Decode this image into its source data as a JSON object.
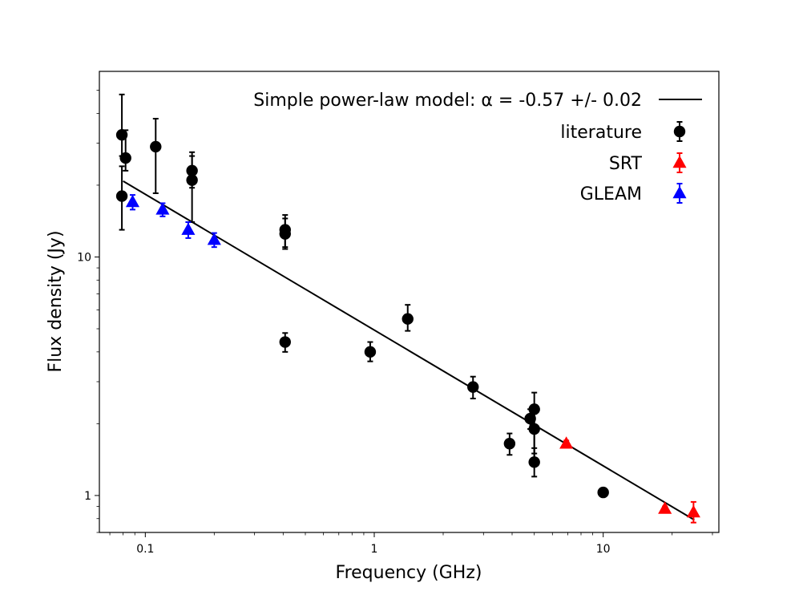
{
  "chart_data": {
    "type": "scatter",
    "xscale": "log",
    "yscale": "log",
    "xlabel": "Frequency (GHz)",
    "ylabel": "Flux density (Jy)",
    "xlim": [
      0.063,
      32
    ],
    "ylim": [
      0.7,
      60
    ],
    "xticks": [
      {
        "value": 0.1,
        "label": "0.1"
      },
      {
        "value": 1,
        "label": "1"
      },
      {
        "value": 10,
        "label": "10"
      }
    ],
    "yticks": [
      {
        "value": 1,
        "label": "1"
      },
      {
        "value": 10,
        "label": "10"
      }
    ],
    "legend": {
      "position": "top-right",
      "entries": [
        {
          "label": "Simple power-law model: α = -0.57 +/- 0.02",
          "kind": "line",
          "color": "#000000"
        },
        {
          "label": "literature",
          "kind": "circle",
          "color": "#000000"
        },
        {
          "label": "SRT",
          "kind": "triangle",
          "color": "#ff0000"
        },
        {
          "label": "GLEAM",
          "kind": "triangle",
          "color": "#0000ff"
        }
      ]
    },
    "model": {
      "name": "Simple power-law model",
      "alpha": -0.57,
      "alpha_err": 0.02,
      "x": [
        0.08,
        25
      ],
      "y": [
        20.8,
        0.79
      ]
    },
    "series": [
      {
        "name": "literature",
        "marker": "circle",
        "color": "#000000",
        "points": [
          {
            "x": 0.079,
            "y": 32.5,
            "ylo": 26.5,
            "yhi": 48
          },
          {
            "x": 0.082,
            "y": 26.0,
            "ylo": 23.0,
            "yhi": 34
          },
          {
            "x": 0.079,
            "y": 18.0,
            "ylo": 13.0,
            "yhi": 24
          },
          {
            "x": 0.111,
            "y": 29.0,
            "ylo": 18.5,
            "yhi": 38
          },
          {
            "x": 0.16,
            "y": 23.0,
            "ylo": 19.5,
            "yhi": 26.5
          },
          {
            "x": 0.16,
            "y": 21.0,
            "ylo": 14.0,
            "yhi": 27.5
          },
          {
            "x": 0.408,
            "y": 13.0,
            "ylo": 11.0,
            "yhi": 15.0
          },
          {
            "x": 0.408,
            "y": 12.5,
            "ylo": 10.8,
            "yhi": 14.5
          },
          {
            "x": 0.408,
            "y": 4.4,
            "ylo": 4.0,
            "yhi": 4.8
          },
          {
            "x": 0.96,
            "y": 4.0,
            "ylo": 3.65,
            "yhi": 4.4
          },
          {
            "x": 1.4,
            "y": 5.5,
            "ylo": 4.9,
            "yhi": 6.3
          },
          {
            "x": 2.7,
            "y": 2.85,
            "ylo": 2.55,
            "yhi": 3.15
          },
          {
            "x": 3.9,
            "y": 1.65,
            "ylo": 1.48,
            "yhi": 1.82
          },
          {
            "x": 4.8,
            "y": 2.1,
            "ylo": 1.9,
            "yhi": 2.3
          },
          {
            "x": 5.0,
            "y": 2.3,
            "ylo": 1.5,
            "yhi": 2.7
          },
          {
            "x": 5.0,
            "y": 1.9,
            "ylo": 1.4,
            "yhi": 2.2
          },
          {
            "x": 5.0,
            "y": 1.38,
            "ylo": 1.2,
            "yhi": 1.58
          },
          {
            "x": 10.0,
            "y": 1.03,
            "ylo": 1.03,
            "yhi": 1.03
          }
        ]
      },
      {
        "name": "SRT",
        "marker": "triangle",
        "color": "#ff0000",
        "points": [
          {
            "x": 6.9,
            "y": 1.65,
            "ylo": 1.6,
            "yhi": 1.7
          },
          {
            "x": 18.6,
            "y": 0.88,
            "ylo": 0.86,
            "yhi": 0.9
          },
          {
            "x": 24.8,
            "y": 0.85,
            "ylo": 0.77,
            "yhi": 0.94
          }
        ]
      },
      {
        "name": "GLEAM",
        "marker": "triangle",
        "color": "#0000ff",
        "points": [
          {
            "x": 0.088,
            "y": 17.0,
            "ylo": 15.8,
            "yhi": 18.2
          },
          {
            "x": 0.119,
            "y": 15.8,
            "ylo": 14.8,
            "yhi": 16.8
          },
          {
            "x": 0.154,
            "y": 13.0,
            "ylo": 12.0,
            "yhi": 14.0
          },
          {
            "x": 0.2,
            "y": 11.8,
            "ylo": 11.0,
            "yhi": 12.6
          }
        ]
      }
    ]
  }
}
